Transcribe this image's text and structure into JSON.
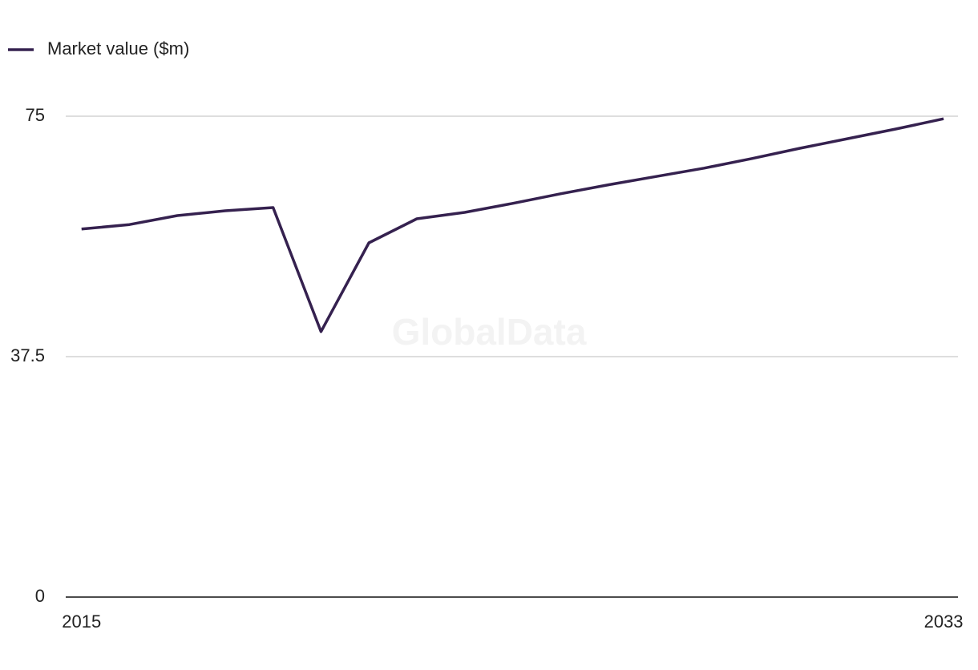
{
  "chart_data": {
    "type": "line",
    "watermark": "GlobalData",
    "x": [
      2015,
      2016,
      2017,
      2018,
      2019,
      2020,
      2021,
      2022,
      2023,
      2024,
      2025,
      2026,
      2027,
      2028,
      2029,
      2030,
      2031,
      2032,
      2033
    ],
    "series": [
      {
        "name": "Market value ($m)",
        "color": "#35214f",
        "values": [
          57.4,
          58.1,
          59.5,
          60.25,
          60.75,
          41.4,
          55.25,
          59,
          60,
          61.4,
          62.9,
          64.3,
          65.6,
          66.9,
          68.4,
          70,
          71.5,
          73,
          74.6
        ]
      }
    ],
    "xlim": [
      2014.67,
      2033.3
    ],
    "xticks": [
      2015,
      2033
    ],
    "ylim": [
      0,
      75
    ],
    "yticks": [
      0,
      37.5,
      75
    ],
    "grid": true,
    "legend": "top-left"
  }
}
